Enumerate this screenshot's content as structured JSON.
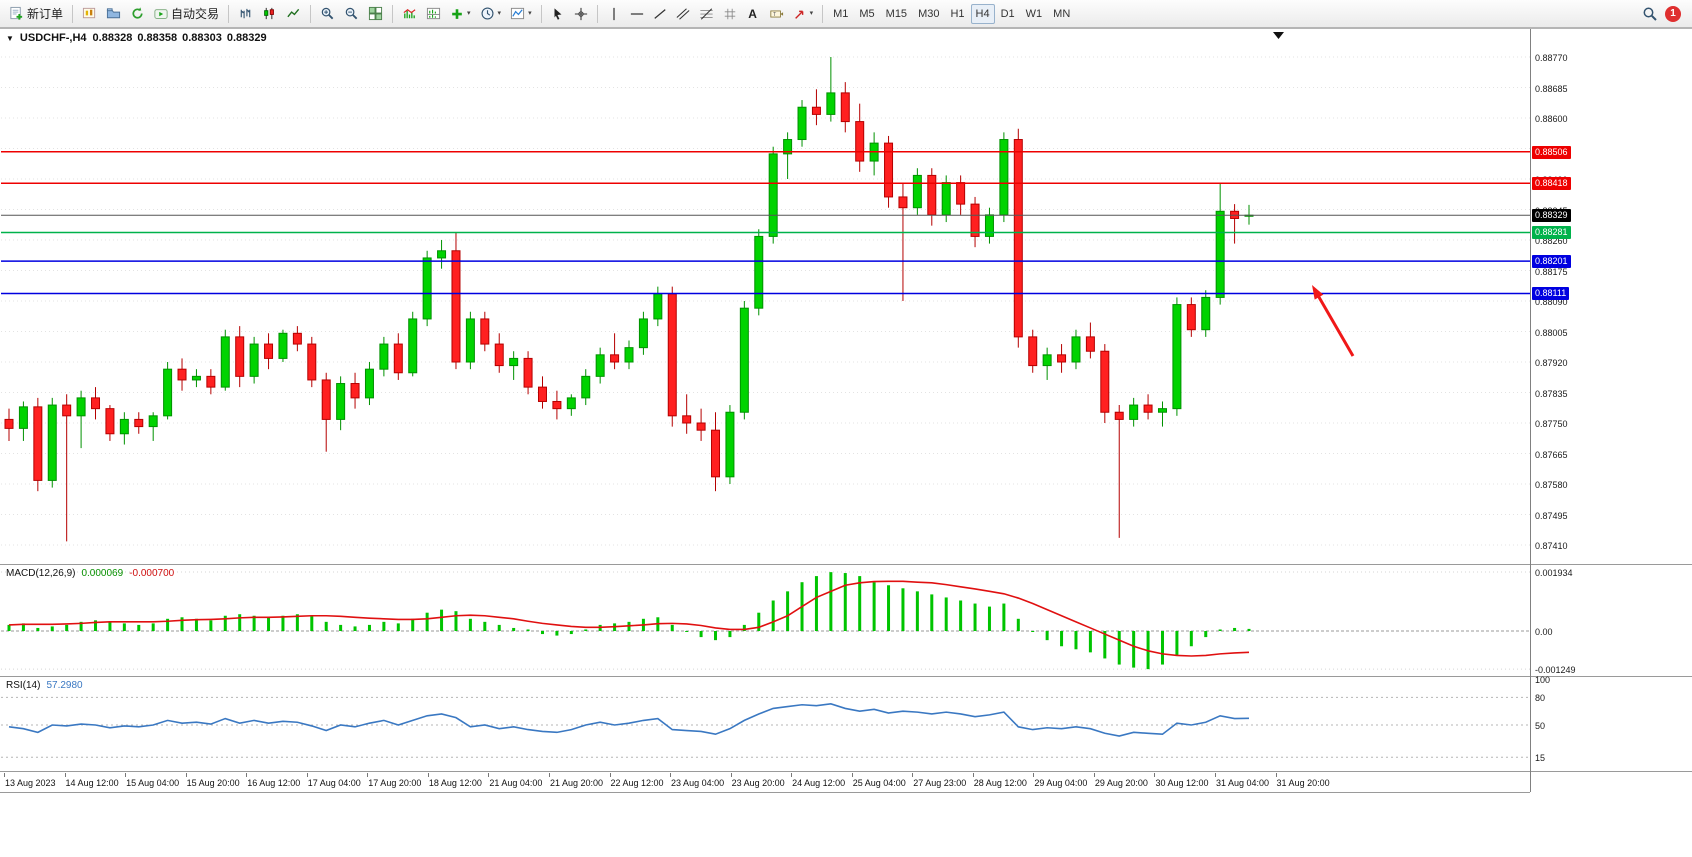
{
  "toolbar": {
    "new_order_label": "新订单",
    "auto_trading_label": "自动交易",
    "timeframes": [
      "M1",
      "M5",
      "M15",
      "M30",
      "H1",
      "H4",
      "D1",
      "W1",
      "MN"
    ],
    "active_timeframe": "H4",
    "notification_count": "1"
  },
  "icons": {
    "dropdown_caret": "▾",
    "collapse_triangle": "▼",
    "text_tool": "A"
  },
  "indicators": {
    "macd": {
      "label": "MACD(12,26,9)",
      "main": "0.000069",
      "signal": "-0.000700"
    },
    "rsi": {
      "label": "RSI(14)",
      "value": "57.2980"
    }
  },
  "chart_data": {
    "type": "candlestick",
    "symbol_period": "USDCHF-,H4",
    "quote": {
      "open": "0.88328",
      "high": "0.88358",
      "low": "0.88303",
      "close": "0.88329"
    },
    "ylim": [
      0.8741,
      0.8877
    ],
    "grid": true,
    "price_axis": [
      "0.88770",
      "0.88685",
      "0.88600",
      "0.88515",
      "0.88430",
      "0.88345",
      "0.88260",
      "0.88175",
      "0.88090",
      "0.88005",
      "0.87920",
      "0.87835",
      "0.87750",
      "0.87665",
      "0.87580",
      "0.87495",
      "0.87410"
    ],
    "hlines": [
      {
        "price": 0.88506,
        "label": "0.88506",
        "color": "#ee0000"
      },
      {
        "price": 0.88418,
        "label": "0.88418",
        "color": "#ee0000"
      },
      {
        "price": 0.88281,
        "label": "0.88281",
        "color": "#00b24b"
      },
      {
        "price": 0.88201,
        "label": "0.88201",
        "color": "#0000e0"
      },
      {
        "price": 0.88111,
        "label": "0.88111",
        "color": "#0000e0"
      }
    ],
    "current_price": {
      "price": 0.88329,
      "label": "0.88329",
      "color": "#000000"
    },
    "colors": {
      "up": "#00d300",
      "up_edge": "#009100",
      "down": "#ff2020",
      "down_edge": "#b50000",
      "macd_bar": "#00c400",
      "macd_signal": "#e01010",
      "rsi_line": "#3a78c2"
    },
    "dates": [
      "13 Aug 2023",
      "14 Aug 12:00",
      "15 Aug 04:00",
      "15 Aug 20:00",
      "16 Aug 12:00",
      "17 Aug 04:00",
      "17 Aug 20:00",
      "18 Aug 12:00",
      "21 Aug 04:00",
      "21 Aug 20:00",
      "22 Aug 12:00",
      "23 Aug 04:00",
      "23 Aug 20:00",
      "24 Aug 12:00",
      "25 Aug 04:00",
      "27 Aug 23:00",
      "28 Aug 12:00",
      "29 Aug 04:00",
      "29 Aug 20:00",
      "30 Aug 12:00",
      "31 Aug 04:00",
      "31 Aug 20:00"
    ],
    "candles": [
      [
        0.8776,
        0.8779,
        0.877,
        0.87735
      ],
      [
        0.87735,
        0.8781,
        0.877,
        0.87795
      ],
      [
        0.87795,
        0.8782,
        0.8756,
        0.8759
      ],
      [
        0.8759,
        0.8782,
        0.8757,
        0.878
      ],
      [
        0.878,
        0.8783,
        0.8742,
        0.8777
      ],
      [
        0.8777,
        0.8784,
        0.8768,
        0.8782
      ],
      [
        0.8782,
        0.8785,
        0.8776,
        0.8779
      ],
      [
        0.8779,
        0.878,
        0.877,
        0.8772
      ],
      [
        0.8772,
        0.8778,
        0.8769,
        0.8776
      ],
      [
        0.8776,
        0.8778,
        0.8772,
        0.8774
      ],
      [
        0.8774,
        0.8778,
        0.877,
        0.8777
      ],
      [
        0.8777,
        0.8792,
        0.8776,
        0.879
      ],
      [
        0.879,
        0.8793,
        0.8784,
        0.8787
      ],
      [
        0.8787,
        0.879,
        0.8785,
        0.8788
      ],
      [
        0.8788,
        0.879,
        0.8783,
        0.8785
      ],
      [
        0.8785,
        0.8801,
        0.8784,
        0.8799
      ],
      [
        0.8799,
        0.8802,
        0.8785,
        0.8788
      ],
      [
        0.8788,
        0.8799,
        0.8786,
        0.8797
      ],
      [
        0.8797,
        0.88,
        0.879,
        0.8793
      ],
      [
        0.8793,
        0.8801,
        0.8792,
        0.88
      ],
      [
        0.88,
        0.8802,
        0.8795,
        0.8797
      ],
      [
        0.8797,
        0.8799,
        0.8785,
        0.8787
      ],
      [
        0.8787,
        0.8789,
        0.8767,
        0.8776
      ],
      [
        0.8776,
        0.8788,
        0.8773,
        0.8786
      ],
      [
        0.8786,
        0.8789,
        0.8779,
        0.8782
      ],
      [
        0.8782,
        0.8792,
        0.878,
        0.879
      ],
      [
        0.879,
        0.8799,
        0.8788,
        0.8797
      ],
      [
        0.8797,
        0.88,
        0.8787,
        0.8789
      ],
      [
        0.8789,
        0.8806,
        0.8788,
        0.8804
      ],
      [
        0.8804,
        0.8823,
        0.8802,
        0.8821
      ],
      [
        0.8821,
        0.8826,
        0.8818,
        0.8823
      ],
      [
        0.8823,
        0.8828,
        0.879,
        0.8792
      ],
      [
        0.8792,
        0.8806,
        0.879,
        0.8804
      ],
      [
        0.8804,
        0.8806,
        0.8795,
        0.8797
      ],
      [
        0.8797,
        0.88,
        0.8789,
        0.8791
      ],
      [
        0.8791,
        0.8795,
        0.8787,
        0.8793
      ],
      [
        0.8793,
        0.8795,
        0.8783,
        0.8785
      ],
      [
        0.8785,
        0.8788,
        0.8779,
        0.8781
      ],
      [
        0.8781,
        0.8784,
        0.8776,
        0.8779
      ],
      [
        0.8779,
        0.8783,
        0.8777,
        0.8782
      ],
      [
        0.8782,
        0.879,
        0.878,
        0.8788
      ],
      [
        0.8788,
        0.8796,
        0.8786,
        0.8794
      ],
      [
        0.8794,
        0.88,
        0.879,
        0.8792
      ],
      [
        0.8792,
        0.8798,
        0.879,
        0.8796
      ],
      [
        0.8796,
        0.8806,
        0.8794,
        0.8804
      ],
      [
        0.8804,
        0.8813,
        0.8802,
        0.8811
      ],
      [
        0.8811,
        0.8813,
        0.8774,
        0.8777
      ],
      [
        0.8777,
        0.8783,
        0.8772,
        0.8775
      ],
      [
        0.8775,
        0.8779,
        0.877,
        0.8773
      ],
      [
        0.8773,
        0.8778,
        0.8756,
        0.876
      ],
      [
        0.876,
        0.878,
        0.8758,
        0.8778
      ],
      [
        0.8778,
        0.8809,
        0.8776,
        0.8807
      ],
      [
        0.8807,
        0.8829,
        0.8805,
        0.8827
      ],
      [
        0.8827,
        0.8852,
        0.8825,
        0.885
      ],
      [
        0.885,
        0.8856,
        0.8843,
        0.8854
      ],
      [
        0.8854,
        0.8865,
        0.8852,
        0.8863
      ],
      [
        0.8863,
        0.8868,
        0.8858,
        0.8861
      ],
      [
        0.8861,
        0.8877,
        0.8859,
        0.8867
      ],
      [
        0.8867,
        0.887,
        0.8856,
        0.8859
      ],
      [
        0.8859,
        0.8864,
        0.8845,
        0.8848
      ],
      [
        0.8848,
        0.8856,
        0.8844,
        0.8853
      ],
      [
        0.8853,
        0.8855,
        0.8835,
        0.8838
      ],
      [
        0.8838,
        0.8842,
        0.8809,
        0.8835
      ],
      [
        0.8835,
        0.8846,
        0.8833,
        0.8844
      ],
      [
        0.8844,
        0.8846,
        0.883,
        0.8833
      ],
      [
        0.8833,
        0.8844,
        0.8831,
        0.8842
      ],
      [
        0.8842,
        0.8844,
        0.8833,
        0.8836
      ],
      [
        0.8836,
        0.8838,
        0.8824,
        0.8827
      ],
      [
        0.8827,
        0.8835,
        0.8825,
        0.8833
      ],
      [
        0.8833,
        0.8856,
        0.8831,
        0.8854
      ],
      [
        0.8854,
        0.8857,
        0.8796,
        0.8799
      ],
      [
        0.8799,
        0.8801,
        0.8789,
        0.8791
      ],
      [
        0.8791,
        0.8796,
        0.8787,
        0.8794
      ],
      [
        0.8794,
        0.8797,
        0.8789,
        0.8792
      ],
      [
        0.8792,
        0.8801,
        0.879,
        0.8799
      ],
      [
        0.8799,
        0.8803,
        0.8793,
        0.8795
      ],
      [
        0.8795,
        0.8797,
        0.8775,
        0.8778
      ],
      [
        0.8778,
        0.878,
        0.8743,
        0.8776
      ],
      [
        0.8776,
        0.8782,
        0.8774,
        0.878
      ],
      [
        0.878,
        0.8783,
        0.8776,
        0.8778
      ],
      [
        0.8778,
        0.8781,
        0.8774,
        0.8779
      ],
      [
        0.8779,
        0.881,
        0.8777,
        0.8808
      ],
      [
        0.8808,
        0.881,
        0.8799,
        0.8801
      ],
      [
        0.8801,
        0.8812,
        0.8799,
        0.881
      ],
      [
        0.881,
        0.8842,
        0.8808,
        0.8834
      ],
      [
        0.8834,
        0.8836,
        0.8825,
        0.8832
      ],
      [
        0.88328,
        0.88358,
        0.88303,
        0.88329
      ]
    ],
    "macd": {
      "axis": [
        "0.001934",
        "0.00",
        "-0.001249"
      ],
      "range": [
        -0.001249,
        0.001934
      ],
      "histogram": [
        0.0002,
        0.00025,
        0.0001,
        0.00015,
        0.0002,
        0.0003,
        0.00035,
        0.0003,
        0.00025,
        0.0002,
        0.00025,
        0.0004,
        0.00045,
        0.0004,
        0.00035,
        0.0005,
        0.00055,
        0.0005,
        0.00045,
        0.0005,
        0.00055,
        0.0005,
        0.0003,
        0.0002,
        0.00015,
        0.0002,
        0.0003,
        0.00025,
        0.0004,
        0.0006,
        0.0007,
        0.00065,
        0.0004,
        0.0003,
        0.0002,
        0.0001,
        5e-05,
        -0.0001,
        -0.00015,
        -0.0001,
        5e-05,
        0.0002,
        0.00025,
        0.0003,
        0.0004,
        0.00045,
        0.0002,
        0.0,
        -0.0002,
        -0.0003,
        -0.0002,
        0.0002,
        0.0006,
        0.001,
        0.0013,
        0.0016,
        0.0018,
        0.00193,
        0.0019,
        0.0018,
        0.0016,
        0.0015,
        0.0014,
        0.0013,
        0.0012,
        0.0011,
        0.001,
        0.0009,
        0.0008,
        0.0009,
        0.0004,
        0.0,
        -0.0003,
        -0.0005,
        -0.0006,
        -0.0007,
        -0.0009,
        -0.0011,
        -0.0012,
        -0.00125,
        -0.0011,
        -0.0008,
        -0.0005,
        -0.0002,
        5e-05,
        0.0001,
        6.9e-05
      ],
      "signal": [
        0.0002,
        0.00022,
        0.00022,
        0.00022,
        0.00023,
        0.00025,
        0.00028,
        0.0003,
        0.0003,
        0.0003,
        0.0003,
        0.00032,
        0.00035,
        0.00037,
        0.00038,
        0.0004,
        0.00043,
        0.00045,
        0.00045,
        0.00046,
        0.00048,
        0.0005,
        0.0005,
        0.00048,
        0.00045,
        0.00042,
        0.0004,
        0.00038,
        0.00038,
        0.0004,
        0.00045,
        0.0005,
        0.00052,
        0.0005,
        0.00045,
        0.0004,
        0.00032,
        0.00025,
        0.0002,
        0.00015,
        0.00012,
        0.00012,
        0.00014,
        0.00017,
        0.0002,
        0.00024,
        0.00025,
        0.00023,
        0.00018,
        0.0001,
        5e-05,
        5e-05,
        0.00012,
        0.0003,
        0.0005,
        0.0008,
        0.0011,
        0.0013,
        0.0015,
        0.00158,
        0.00162,
        0.00163,
        0.00163,
        0.0016,
        0.00158,
        0.00152,
        0.00145,
        0.00138,
        0.0013,
        0.00122,
        0.00108,
        0.0009,
        0.0007,
        0.0005,
        0.0003,
        0.0001,
        -0.0001,
        -0.0003,
        -0.0005,
        -0.00065,
        -0.00075,
        -0.0008,
        -0.00082,
        -0.0008,
        -0.00075,
        -0.00072,
        -0.0007
      ]
    },
    "rsi": {
      "axis": [
        "100",
        "80",
        "50",
        "15"
      ],
      "levels": [
        80,
        50,
        15
      ],
      "values": [
        48,
        46,
        42,
        50,
        49,
        51,
        50,
        47,
        49,
        48,
        50,
        55,
        52,
        53,
        51,
        57,
        52,
        55,
        52,
        54,
        53,
        49,
        44,
        50,
        48,
        52,
        55,
        50,
        55,
        60,
        62,
        58,
        48,
        50,
        46,
        48,
        45,
        43,
        42,
        45,
        50,
        53,
        50,
        52,
        55,
        57,
        45,
        44,
        43,
        40,
        46,
        55,
        62,
        68,
        70,
        72,
        71,
        73,
        68,
        65,
        67,
        63,
        65,
        64,
        62,
        64,
        62,
        59,
        61,
        64,
        48,
        45,
        47,
        46,
        48,
        46,
        41,
        38,
        42,
        41,
        40,
        52,
        50,
        53,
        60,
        57,
        57.3
      ]
    },
    "annotations": {
      "arrow": {
        "tail": [
          1352,
          327
        ],
        "head": [
          1311,
          256
        ],
        "color": "#f01818"
      }
    }
  }
}
